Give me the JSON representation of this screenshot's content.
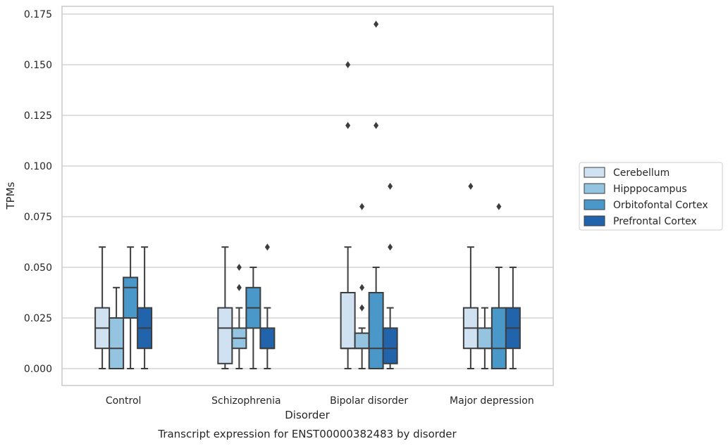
{
  "chart_data": {
    "type": "box",
    "title": "",
    "xlabel": "Disorder",
    "ylabel": "TPMs",
    "caption": "Transcript expression for ENST00000382483 by disorder",
    "ylim": [
      -0.0085,
      0.1785
    ],
    "yticks": [
      0.0,
      0.025,
      0.05,
      0.075,
      0.1,
      0.125,
      0.15,
      0.175
    ],
    "ytick_labels": [
      "0.000",
      "0.025",
      "0.050",
      "0.075",
      "0.100",
      "0.125",
      "0.150",
      "0.175"
    ],
    "grid": true,
    "legend_placement": "right",
    "categories": [
      "Control",
      "Schizophrenia",
      "Bipolar disorder",
      "Major depression"
    ],
    "series": [
      {
        "name": "Cerebellum",
        "color": "#d0e1f2",
        "boxes": [
          {
            "whisker_low": 0.0,
            "q1": 0.01,
            "median": 0.02,
            "q3": 0.03,
            "whisker_high": 0.06,
            "outliers": []
          },
          {
            "whisker_low": 0.0,
            "q1": 0.0025,
            "median": 0.02,
            "q3": 0.03,
            "whisker_high": 0.06,
            "outliers": []
          },
          {
            "whisker_low": 0.0,
            "q1": 0.01,
            "median": 0.01,
            "q3": 0.0375,
            "whisker_high": 0.06,
            "outliers": [
              0.12,
              0.15
            ]
          },
          {
            "whisker_low": 0.0,
            "q1": 0.01,
            "median": 0.02,
            "q3": 0.03,
            "whisker_high": 0.06,
            "outliers": [
              0.09
            ]
          }
        ]
      },
      {
        "name": "Hipppocampus",
        "color": "#94c4df",
        "boxes": [
          {
            "whisker_low": 0.0,
            "q1": 0.0,
            "median": 0.01,
            "q3": 0.025,
            "whisker_high": 0.04,
            "outliers": []
          },
          {
            "whisker_low": 0.0,
            "q1": 0.01,
            "median": 0.015,
            "q3": 0.02,
            "whisker_high": 0.03,
            "outliers": [
              0.04,
              0.05
            ]
          },
          {
            "whisker_low": 0.0,
            "q1": 0.01,
            "median": 0.01,
            "q3": 0.0175,
            "whisker_high": 0.02,
            "outliers": [
              0.03,
              0.04,
              0.08
            ]
          },
          {
            "whisker_low": 0.0,
            "q1": 0.01,
            "median": 0.01,
            "q3": 0.02,
            "whisker_high": 0.03,
            "outliers": []
          }
        ]
      },
      {
        "name": "Orbitofontal Cortex",
        "color": "#4a98c9",
        "boxes": [
          {
            "whisker_low": 0.0,
            "q1": 0.025,
            "median": 0.04,
            "q3": 0.045,
            "whisker_high": 0.06,
            "outliers": []
          },
          {
            "whisker_low": 0.0,
            "q1": 0.02,
            "median": 0.03,
            "q3": 0.04,
            "whisker_high": 0.05,
            "outliers": []
          },
          {
            "whisker_low": 0.0,
            "q1": 0.0,
            "median": 0.01,
            "q3": 0.0375,
            "whisker_high": 0.05,
            "outliers": [
              0.12,
              0.17
            ]
          },
          {
            "whisker_low": 0.0,
            "q1": 0.0,
            "median": 0.01,
            "q3": 0.03,
            "whisker_high": 0.05,
            "outliers": [
              0.08
            ]
          }
        ]
      },
      {
        "name": "Prefrontal Cortex",
        "color": "#2164ab",
        "boxes": [
          {
            "whisker_low": 0.0,
            "q1": 0.01,
            "median": 0.02,
            "q3": 0.03,
            "whisker_high": 0.06,
            "outliers": []
          },
          {
            "whisker_low": 0.0,
            "q1": 0.01,
            "median": 0.01,
            "q3": 0.02,
            "whisker_high": 0.03,
            "outliers": [
              0.06
            ]
          },
          {
            "whisker_low": 0.0,
            "q1": 0.0025,
            "median": 0.01,
            "q3": 0.02,
            "whisker_high": 0.03,
            "outliers": [
              0.06,
              0.09
            ]
          },
          {
            "whisker_low": 0.0,
            "q1": 0.01,
            "median": 0.02,
            "q3": 0.03,
            "whisker_high": 0.05,
            "outliers": []
          }
        ]
      }
    ]
  }
}
